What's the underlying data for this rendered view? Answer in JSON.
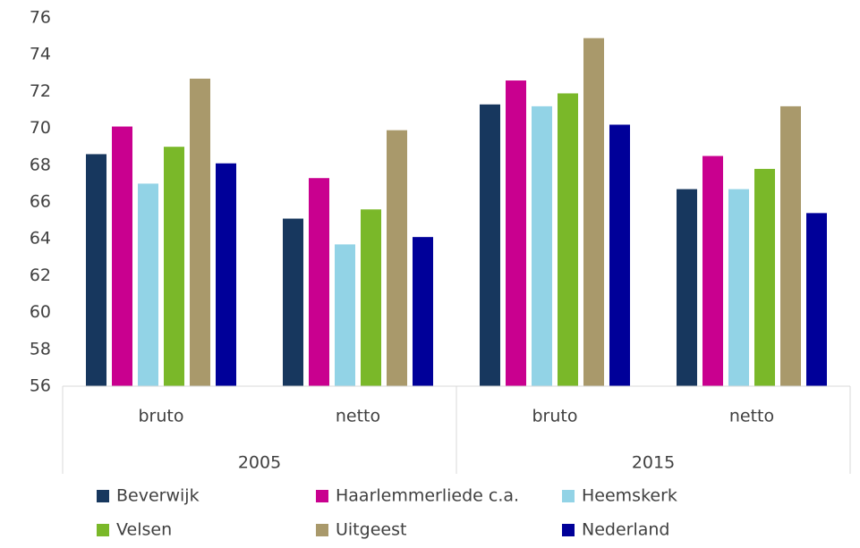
{
  "chart_data": {
    "type": "bar",
    "categories": [
      "bruto",
      "netto",
      "bruto",
      "netto"
    ],
    "category_groups": [
      "2005",
      "2015"
    ],
    "series": [
      {
        "name": "Beverwijk",
        "color": "#17375e",
        "values": [
          68.6,
          65.1,
          71.3,
          66.7
        ]
      },
      {
        "name": "Haarlemmerliede c.a.",
        "color": "#c9008f",
        "values": [
          70.1,
          67.3,
          72.6,
          68.5
        ]
      },
      {
        "name": "Heemskerk",
        "color": "#92d3e6",
        "values": [
          67.0,
          63.7,
          71.2,
          66.7
        ]
      },
      {
        "name": "Velsen",
        "color": "#7ab829",
        "values": [
          69.0,
          65.6,
          71.9,
          67.8
        ]
      },
      {
        "name": "Uitgeest",
        "color": "#a9996b",
        "values": [
          72.7,
          69.9,
          74.9,
          71.2
        ]
      },
      {
        "name": "Nederland",
        "color": "#000099",
        "values": [
          68.1,
          64.1,
          70.2,
          65.4
        ]
      }
    ],
    "ylim": [
      56,
      76
    ],
    "yticks": [
      56,
      58,
      60,
      62,
      64,
      66,
      68,
      70,
      72,
      74,
      76
    ],
    "legend": "bottom"
  }
}
